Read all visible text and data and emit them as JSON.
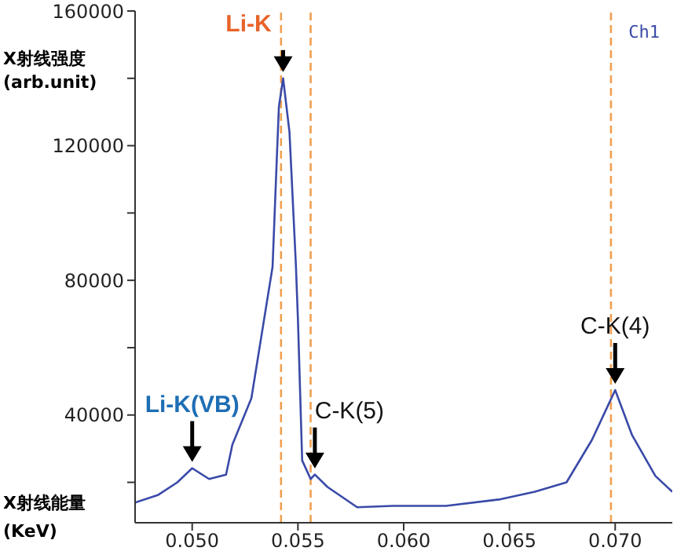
{
  "chart_data": {
    "type": "line",
    "xlabel": "X射线能量\n(KeV)",
    "ylabel": "X射线强度\n(arb.unit)",
    "x": [
      0.0473,
      0.0484,
      0.0493,
      0.05,
      0.0508,
      0.0516,
      0.0519,
      0.0528,
      0.0534,
      0.0538,
      0.054,
      0.0541,
      0.0543,
      0.0546,
      0.0549,
      0.055,
      0.0552,
      0.0556,
      0.0558,
      0.0564,
      0.0578,
      0.0595,
      0.062,
      0.0645,
      0.0662,
      0.0677,
      0.0689,
      0.07,
      0.0708,
      0.0719,
      0.0727
    ],
    "series": [
      {
        "color": "#3a4aa8",
        "values": [
          14000,
          16300,
          20000,
          24200,
          21000,
          22300,
          31200,
          45000,
          68400,
          84000,
          116000,
          131600,
          140000,
          124000,
          85000,
          68400,
          26500,
          21000,
          22300,
          18600,
          12600,
          13000,
          13000,
          14900,
          17200,
          20000,
          32600,
          47400,
          34000,
          21900,
          17200
        ]
      }
    ],
    "xlim": [
      0.0473,
      0.0727
    ],
    "xticks": [
      {
        "value": 0.05,
        "label": "0.050"
      },
      {
        "value": 0.055,
        "label": "0.055"
      },
      {
        "value": 0.06,
        "label": "0.060"
      },
      {
        "value": 0.065,
        "label": "0.065"
      },
      {
        "value": 0.07,
        "label": "0.070"
      }
    ],
    "ylim": [
      8000,
      160000
    ],
    "yticks": [
      {
        "value": 20000,
        "label": null
      },
      40000,
      {
        "value": 60000,
        "label": null
      },
      80000,
      {
        "value": 100000,
        "label": null
      },
      120000,
      {
        "value": 140000,
        "label": null
      },
      160000
    ],
    "ref_lines": [
      {
        "axis": "x",
        "value": 0.0542,
        "color": "#f0a050",
        "line_style": "dashed"
      },
      {
        "axis": "x",
        "value": 0.0556,
        "color": "#f0a050",
        "line_style": "dashed"
      },
      {
        "axis": "x",
        "value": 0.0698,
        "color": "#f0a050",
        "line_style": "dashed"
      }
    ],
    "annotations": [
      {
        "text": "Li-K",
        "x": 0.0543,
        "y": 140000
      },
      {
        "text": "Li-K(VB)",
        "x": 0.05,
        "y": 24200
      },
      {
        "text": "C-K(5)",
        "x": 0.0558,
        "y": 22300
      },
      {
        "text": "C-K(4)",
        "x": 0.07,
        "y": 47400
      },
      "Ch1"
    ],
    "grid": false,
    "legend": false,
    "marker": "none",
    "line_style": "solid"
  }
}
